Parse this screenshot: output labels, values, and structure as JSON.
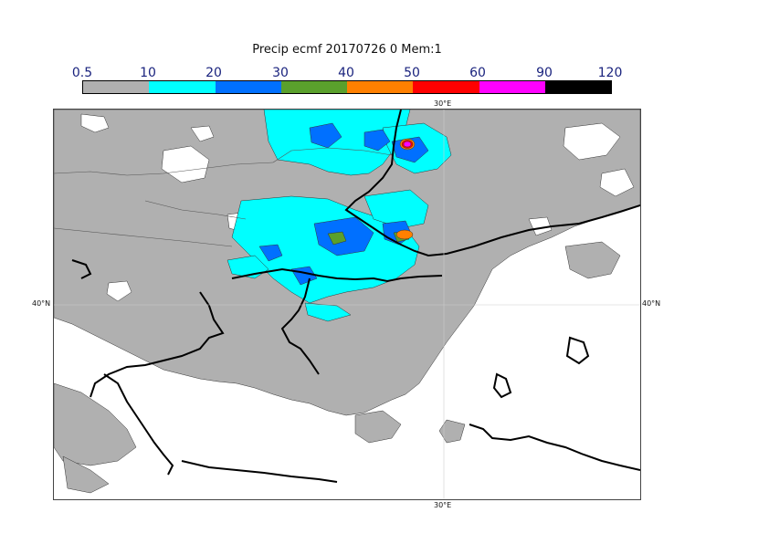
{
  "title": "Precip ecmf 20170726 0 Mem:1",
  "legend": {
    "levels": [
      "0.5",
      "10",
      "20",
      "30",
      "40",
      "50",
      "60",
      "90",
      "120"
    ],
    "colors": [
      "#b0b0b0",
      "#00ffff",
      "#0070ff",
      "#5aa02c",
      "#ff8000",
      "#ff0000",
      "#ff00ff",
      "#000000"
    ]
  },
  "axes": {
    "lon_top": "30°E",
    "lon_bottom": "30°E",
    "lat_left": "40°N",
    "lat_right": "40°N"
  }
}
